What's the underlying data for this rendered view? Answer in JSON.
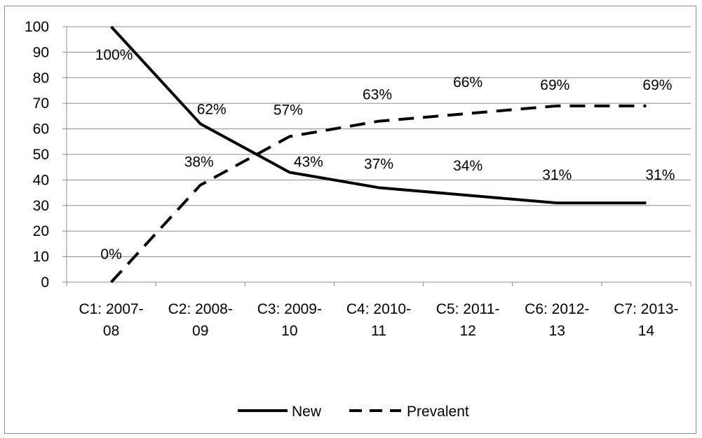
{
  "chart_data": {
    "type": "line",
    "categories": [
      [
        "C1: 2007-",
        "08"
      ],
      [
        "C2: 2008-",
        "09"
      ],
      [
        "C3: 2009-",
        "10"
      ],
      [
        "C4: 2010-",
        "11"
      ],
      [
        "C5: 2011-",
        "12"
      ],
      [
        "C6: 2012-",
        "13"
      ],
      [
        "C7: 2013-",
        "14"
      ]
    ],
    "series": [
      {
        "name": "New",
        "values": [
          100,
          62,
          43,
          37,
          34,
          31,
          31
        ],
        "labels": [
          "100%",
          "62%",
          "43%",
          "37%",
          "34%",
          "31%",
          "31%"
        ],
        "style": "solid",
        "color": "#000000"
      },
      {
        "name": "Prevalent",
        "values": [
          0,
          38,
          57,
          63,
          66,
          69,
          69
        ],
        "labels": [
          "0%",
          "38%",
          "57%",
          "63%",
          "66%",
          "69%",
          "69%"
        ],
        "style": "dashed",
        "color": "#000000"
      }
    ],
    "ylim": [
      0,
      100
    ],
    "yticks": [
      "0",
      "10",
      "20",
      "30",
      "40",
      "50",
      "60",
      "70",
      "80",
      "90",
      "100"
    ],
    "grid": true,
    "legend_position": "bottom",
    "title": "",
    "xlabel": "",
    "ylabel": ""
  }
}
